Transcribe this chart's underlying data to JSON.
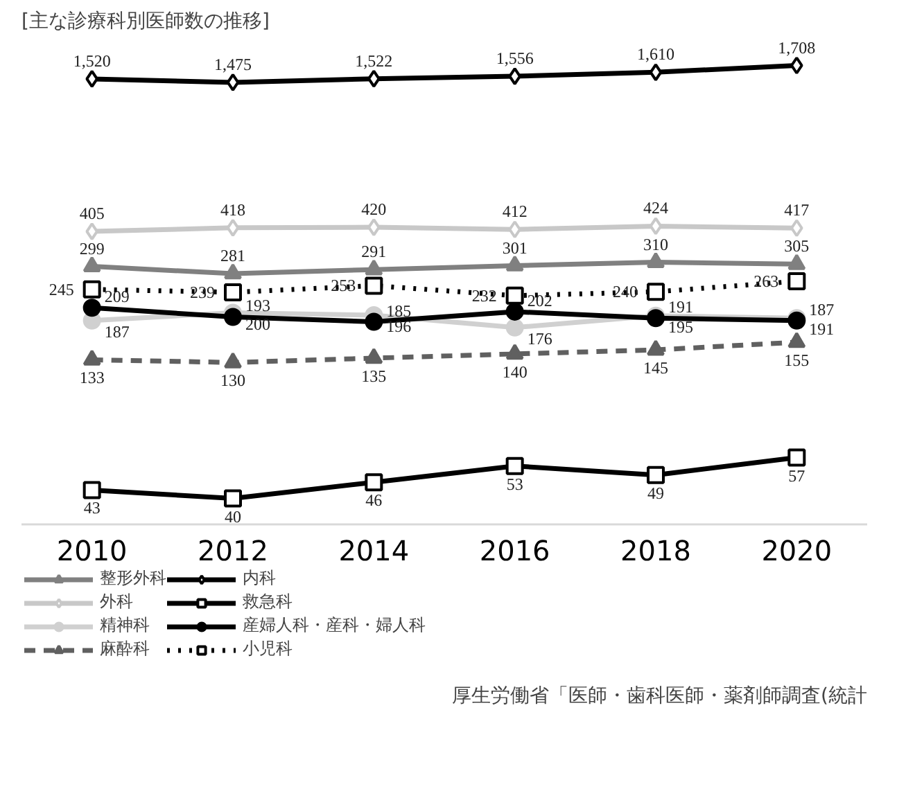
{
  "chart_data": {
    "type": "line",
    "title": "[主な診療科別医師数の推移]",
    "x": [
      2010,
      2012,
      2014,
      2016,
      2018,
      2020
    ],
    "xlim": [
      2009,
      2021
    ],
    "xticks": [
      2010,
      2012,
      2014,
      2016,
      2018,
      2020
    ],
    "log": true,
    "tick_labels": "x",
    "legend": "bottom",
    "annotations": [
      "厚生労働省「医師・歯科医師・薬剤師調査(統計"
    ],
    "series": [
      {
        "name": "整形外科",
        "color": "#808080",
        "marker": "triangle",
        "line_style": "solid",
        "values": [
          299,
          281,
          291,
          301,
          310,
          305
        ],
        "value_labels": [
          "299",
          "281",
          "291",
          "301",
          "310",
          "305"
        ]
      },
      {
        "name": "外科",
        "color": "#c8c8c8",
        "marker": "diamond",
        "line_style": "solid",
        "values": [
          405,
          418,
          420,
          412,
          424,
          417
        ],
        "value_labels": [
          "405",
          "418",
          "420",
          "412",
          "424",
          "417"
        ]
      },
      {
        "name": "精神科",
        "color": "#d0d0d0",
        "marker": "circle",
        "line_style": "solid",
        "values": [
          187,
          200,
          196,
          176,
          195,
          191
        ],
        "value_labels": [
          "187",
          "200",
          "196",
          "176",
          "195",
          "191"
        ]
      },
      {
        "name": "麻酔科",
        "color": "#606060",
        "marker": "triangle",
        "line_style": "dashed",
        "values": [
          133,
          130,
          135,
          140,
          145,
          155
        ],
        "value_labels": [
          "133",
          "130",
          "135",
          "140",
          "145",
          "155"
        ]
      },
      {
        "name": "内科",
        "color": "#000000",
        "marker": "diamond",
        "line_style": "solid",
        "values": [
          1520,
          1475,
          1522,
          1556,
          1610,
          1708
        ],
        "value_labels": [
          "1,520",
          "1,475",
          "1,522",
          "1,556",
          "1,610",
          "1,708"
        ]
      },
      {
        "name": "救急科",
        "color": "#000000",
        "marker": "square",
        "line_style": "solid",
        "values": [
          43,
          40,
          46,
          53,
          49,
          57
        ],
        "value_labels": [
          "43",
          "40",
          "46",
          "53",
          "49",
          "57"
        ]
      },
      {
        "name": "産婦人科・産科・婦人科",
        "color": "#000000",
        "marker": "circle",
        "line_style": "solid",
        "values": [
          209,
          193,
          185,
          202,
          191,
          187
        ],
        "value_labels": [
          "209",
          "193",
          "185",
          "202",
          "191",
          "187"
        ]
      },
      {
        "name": "小児科",
        "color": "#000000",
        "marker": "square",
        "line_style": "dotted",
        "values": [
          245,
          239,
          253,
          232,
          240,
          263
        ],
        "value_labels": [
          "245",
          "239",
          "253",
          "232",
          "240",
          "263"
        ]
      }
    ]
  }
}
